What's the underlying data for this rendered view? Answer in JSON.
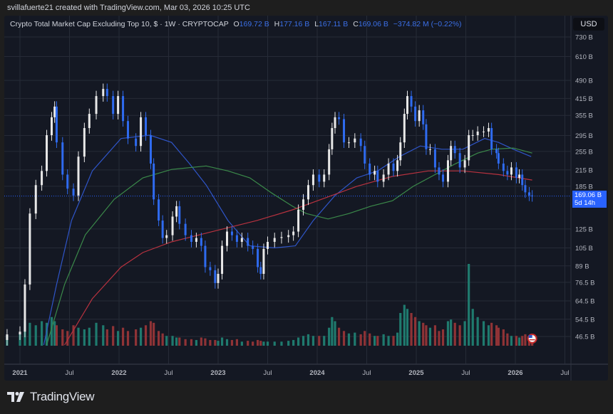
{
  "credit": "svillafuerte21 created with TradingView.com, Mar 03, 2026 10:25 UTC",
  "legend": {
    "title": "Crypto Total Market Cap Excluding Top 10, $ · 1W · CRYPTOCAP",
    "o_label": "O",
    "o": "169.72 B",
    "h_label": "H",
    "h": "177.16 B",
    "l_label": "L",
    "l": "167.11 B",
    "c_label": "C",
    "c": "169.06 B",
    "change": "−374.82 M (−0.22%)"
  },
  "currency": "USD",
  "price_label": {
    "value": "169.06 B",
    "countdown": "5d 14h"
  },
  "brand": "TradingView",
  "icons": {
    "flag": "us-flag-event-icon",
    "logo": "tradingview-logo-icon"
  },
  "colors": {
    "up": "#e8e8e8",
    "down": "#2f6bf0",
    "vol_up": "#1f7a6e",
    "vol_down": "#8f3336",
    "ma_fast": "#2f55c8",
    "ma_mid": "#3b8a4a",
    "ma_slow": "#b8323f",
    "grid": "#262b37",
    "accent": "#2962ff"
  },
  "chart_data": {
    "type": "candlestick",
    "title": "Crypto Total Market Cap Excluding Top 10, $ · 1W · CRYPTOCAP",
    "y_scale": "log",
    "ylim": [
      44,
      760
    ],
    "y_unit": "B USD",
    "y_ticks": [
      "730 B",
      "610 B",
      "490 B",
      "415 B",
      "355 B",
      "295 B",
      "255 B",
      "215 B",
      "185 B",
      "125 B",
      "105 B",
      "89 B",
      "76.5 B",
      "64.5 B",
      "54.5 B",
      "46.5 B"
    ],
    "y_tick_values": [
      730,
      610,
      490,
      415,
      355,
      295,
      255,
      215,
      185,
      125,
      105,
      89,
      76.5,
      64.5,
      54.5,
      46.5
    ],
    "x_ticks": [
      "2021",
      "Jul",
      "2022",
      "Jul",
      "2023",
      "Jul",
      "2024",
      "Jul",
      "2025",
      "Jul",
      "2026",
      "Jul"
    ],
    "x_tick_values": [
      2021,
      2021.5,
      2022,
      2022.5,
      2023,
      2023.5,
      2024,
      2024.5,
      2025,
      2025.5,
      2026,
      2026.5
    ],
    "grid": true,
    "candles_year_close_volume": [
      [
        2020.87,
        47.4,
        12
      ],
      [
        2021.0,
        48.6,
        15
      ],
      [
        2021.05,
        75,
        30
      ],
      [
        2021.1,
        144,
        28
      ],
      [
        2021.16,
        187,
        25
      ],
      [
        2021.22,
        213,
        30
      ],
      [
        2021.27,
        296,
        28
      ],
      [
        2021.32,
        349,
        35
      ],
      [
        2021.35,
        385,
        30
      ],
      [
        2021.37,
        277,
        25
      ],
      [
        2021.43,
        206,
        20
      ],
      [
        2021.48,
        181,
        18
      ],
      [
        2021.54,
        170,
        25
      ],
      [
        2021.59,
        243,
        22
      ],
      [
        2021.65,
        316,
        20
      ],
      [
        2021.7,
        360,
        22
      ],
      [
        2021.77,
        424,
        28
      ],
      [
        2021.84,
        453,
        25
      ],
      [
        2021.88,
        424,
        20
      ],
      [
        2021.94,
        360,
        24
      ],
      [
        2021.99,
        424,
        18
      ],
      [
        2022.04,
        337,
        22
      ],
      [
        2022.09,
        287,
        18
      ],
      [
        2022.17,
        268,
        20
      ],
      [
        2022.22,
        349,
        22
      ],
      [
        2022.27,
        296,
        25
      ],
      [
        2022.32,
        228,
        30
      ],
      [
        2022.35,
        164,
        28
      ],
      [
        2022.4,
        135,
        18
      ],
      [
        2022.44,
        115,
        15
      ],
      [
        2022.48,
        118,
        12
      ],
      [
        2022.54,
        140,
        12
      ],
      [
        2022.58,
        154,
        10
      ],
      [
        2022.61,
        131,
        10
      ],
      [
        2022.67,
        118,
        8
      ],
      [
        2022.73,
        111,
        8
      ],
      [
        2022.78,
        115,
        7
      ],
      [
        2022.83,
        107,
        10
      ],
      [
        2022.87,
        88,
        9
      ],
      [
        2022.92,
        85.5,
        7
      ],
      [
        2022.97,
        76,
        7
      ],
      [
        2023.0,
        82.7,
        6
      ],
      [
        2023.04,
        107,
        10
      ],
      [
        2023.09,
        122,
        8
      ],
      [
        2023.14,
        118,
        7
      ],
      [
        2023.19,
        111,
        8
      ],
      [
        2023.24,
        115,
        5
      ],
      [
        2023.3,
        107,
        6
      ],
      [
        2023.35,
        104,
        5
      ],
      [
        2023.4,
        88,
        7
      ],
      [
        2023.43,
        82.7,
        6
      ],
      [
        2023.46,
        104,
        5
      ],
      [
        2023.5,
        111,
        5
      ],
      [
        2023.57,
        115,
        5
      ],
      [
        2023.64,
        116,
        5
      ],
      [
        2023.71,
        118,
        6
      ],
      [
        2023.76,
        122,
        7
      ],
      [
        2023.81,
        149,
        10
      ],
      [
        2023.86,
        164,
        12
      ],
      [
        2023.91,
        187,
        14
      ],
      [
        2023.96,
        206,
        12
      ],
      [
        2024.02,
        193,
        12
      ],
      [
        2024.07,
        206,
        12
      ],
      [
        2024.12,
        260,
        22
      ],
      [
        2024.15,
        316,
        35
      ],
      [
        2024.18,
        349,
        30
      ],
      [
        2024.22,
        343,
        22
      ],
      [
        2024.27,
        277,
        18
      ],
      [
        2024.32,
        277,
        15
      ],
      [
        2024.38,
        287,
        16
      ],
      [
        2024.44,
        268,
        14
      ],
      [
        2024.48,
        228,
        18
      ],
      [
        2024.53,
        206,
        15
      ],
      [
        2024.58,
        213,
        12
      ],
      [
        2024.61,
        193,
        12
      ],
      [
        2024.67,
        206,
        14
      ],
      [
        2024.72,
        228,
        12
      ],
      [
        2024.77,
        213,
        12
      ],
      [
        2024.81,
        235,
        16
      ],
      [
        2024.84,
        277,
        40
      ],
      [
        2024.88,
        360,
        50
      ],
      [
        2024.91,
        424,
        45
      ],
      [
        2024.95,
        385,
        40
      ],
      [
        2024.99,
        337,
        35
      ],
      [
        2025.03,
        372,
        30
      ],
      [
        2025.07,
        327,
        28
      ],
      [
        2025.1,
        260,
        25
      ],
      [
        2025.14,
        260,
        22
      ],
      [
        2025.19,
        220,
        25
      ],
      [
        2025.23,
        206,
        18
      ],
      [
        2025.27,
        193,
        20
      ],
      [
        2025.32,
        235,
        30
      ],
      [
        2025.35,
        268,
        32
      ],
      [
        2025.39,
        251,
        28
      ],
      [
        2025.44,
        220,
        25
      ],
      [
        2025.49,
        235,
        30
      ],
      [
        2025.53,
        296,
        100
      ],
      [
        2025.57,
        296,
        45
      ],
      [
        2025.62,
        306,
        35
      ],
      [
        2025.68,
        306,
        30
      ],
      [
        2025.73,
        316,
        25
      ],
      [
        2025.76,
        260,
        28
      ],
      [
        2025.81,
        251,
        25
      ],
      [
        2025.83,
        228,
        22
      ],
      [
        2025.88,
        213,
        20
      ],
      [
        2025.92,
        206,
        15
      ],
      [
        2025.96,
        220,
        12
      ],
      [
        2026.01,
        200,
        12
      ],
      [
        2026.04,
        206,
        10
      ],
      [
        2026.07,
        187,
        12
      ],
      [
        2026.1,
        175,
        14
      ],
      [
        2026.14,
        170,
        10
      ],
      [
        2026.17,
        169.06,
        8
      ]
    ],
    "moving_averages": [
      {
        "color": "#2f55c8",
        "points": [
          [
            2021.24,
            43
          ],
          [
            2021.37,
            75
          ],
          [
            2021.52,
            135
          ],
          [
            2021.73,
            213
          ],
          [
            2022.02,
            287
          ],
          [
            2022.31,
            296
          ],
          [
            2022.53,
            277
          ],
          [
            2022.71,
            228
          ],
          [
            2022.88,
            187
          ],
          [
            2023.1,
            135
          ],
          [
            2023.32,
            107
          ],
          [
            2023.57,
            105
          ],
          [
            2023.78,
            107
          ],
          [
            2023.96,
            135
          ],
          [
            2024.18,
            170
          ],
          [
            2024.4,
            200
          ],
          [
            2024.61,
            213
          ],
          [
            2024.83,
            243
          ],
          [
            2025.04,
            268
          ],
          [
            2025.26,
            260
          ],
          [
            2025.47,
            260
          ],
          [
            2025.69,
            287
          ],
          [
            2025.83,
            277
          ],
          [
            2025.98,
            260
          ],
          [
            2026.16,
            243
          ]
        ]
      },
      {
        "color": "#3b8a4a",
        "points": [
          [
            2021.27,
            43
          ],
          [
            2021.45,
            75
          ],
          [
            2021.66,
            118.5
          ],
          [
            2021.95,
            164
          ],
          [
            2022.24,
            200
          ],
          [
            2022.53,
            216
          ],
          [
            2022.88,
            223
          ],
          [
            2023.1,
            213
          ],
          [
            2023.32,
            200
          ],
          [
            2023.53,
            175
          ],
          [
            2023.75,
            154
          ],
          [
            2023.89,
            144
          ],
          [
            2024.11,
            137
          ],
          [
            2024.32,
            144
          ],
          [
            2024.54,
            154
          ],
          [
            2024.76,
            162
          ],
          [
            2024.97,
            185
          ],
          [
            2025.19,
            206
          ],
          [
            2025.4,
            228
          ],
          [
            2025.62,
            251
          ],
          [
            2025.76,
            260
          ],
          [
            2025.98,
            263
          ],
          [
            2026.17,
            251
          ]
        ]
      },
      {
        "color": "#b8323f",
        "points": [
          [
            2021.45,
            43
          ],
          [
            2021.73,
            65.8
          ],
          [
            2022.02,
            88
          ],
          [
            2022.24,
            100.6
          ],
          [
            2022.53,
            111
          ],
          [
            2022.96,
            122.5
          ],
          [
            2023.39,
            135
          ],
          [
            2023.75,
            149
          ],
          [
            2024.04,
            164
          ],
          [
            2024.4,
            185
          ],
          [
            2024.76,
            202.6
          ],
          [
            2025.12,
            213
          ],
          [
            2025.47,
            213
          ],
          [
            2025.83,
            206
          ],
          [
            2026.17,
            196
          ]
        ]
      }
    ],
    "last_price": 169.06
  }
}
